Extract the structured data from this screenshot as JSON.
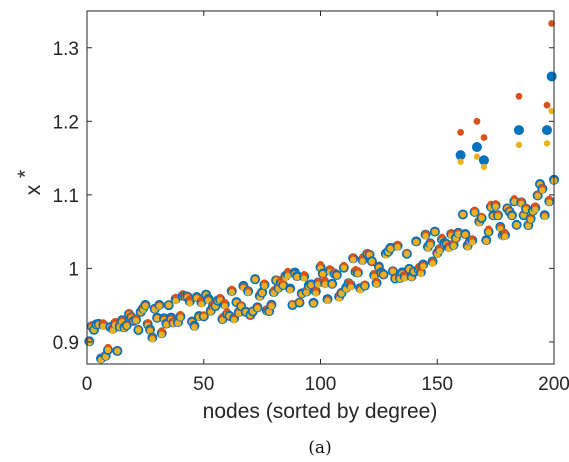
{
  "chart_data": {
    "type": "scatter",
    "xlabel": "nodes (sorted by degree)",
    "ylabel_base": "x",
    "ylabel_sup": "*",
    "caption": "(a)",
    "xlim": [
      0,
      200
    ],
    "ylim": [
      0.87,
      1.35
    ],
    "xticks": [
      0,
      50,
      100,
      150,
      200
    ],
    "yticks": [
      0.9,
      1,
      1.1,
      1.2,
      1.3
    ],
    "grid": false,
    "legend": "none",
    "colors": {
      "blue": "#0072BD",
      "orange": "#D95319",
      "yellow": "#EDB120"
    },
    "base_curve": [
      [
        0,
        0.895
      ],
      [
        10,
        0.905
      ],
      [
        20,
        0.925
      ],
      [
        40,
        0.94
      ],
      [
        60,
        0.955
      ],
      [
        80,
        0.965
      ],
      [
        100,
        0.98
      ],
      [
        120,
        0.995
      ],
      [
        140,
        1.015
      ],
      [
        150,
        1.03
      ],
      [
        160,
        1.05
      ],
      [
        170,
        1.06
      ],
      [
        180,
        1.07
      ],
      [
        190,
        1.085
      ],
      [
        200,
        1.105
      ]
    ],
    "spread": 0.025,
    "seed": 7,
    "n_nodes": 200,
    "highlight_points": [
      {
        "x": 160,
        "blue": 1.154,
        "orange": 1.185,
        "yellow": 1.145
      },
      {
        "x": 167,
        "blue": 1.165,
        "orange": 1.2,
        "yellow": 1.152
      },
      {
        "x": 170,
        "blue": 1.147,
        "orange": 1.178,
        "yellow": 1.138
      },
      {
        "x": 185,
        "blue": 1.188,
        "orange": 1.234,
        "yellow": 1.168
      },
      {
        "x": 197,
        "blue": 1.188,
        "orange": 1.222,
        "yellow": 1.17
      },
      {
        "x": 199,
        "blue": 1.261,
        "orange": 1.333,
        "yellow": 1.214
      }
    ]
  }
}
